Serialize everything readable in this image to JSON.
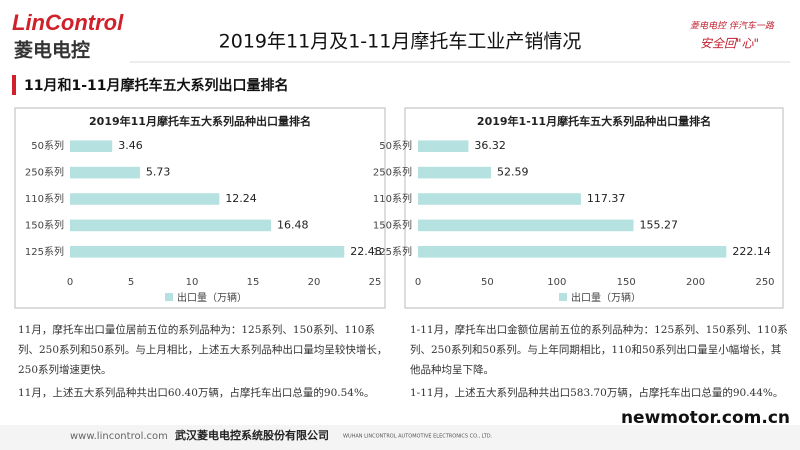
{
  "header": {
    "logo": "LinControl",
    "logo_cn": "菱电电控",
    "title": "2019年11月及1-11月摩托车工业产销情况",
    "slogan_1": "菱电电控 伴汽车一路",
    "slogan_2": "安全回\"心\""
  },
  "section_title": "11月和1-11月摩托车五大系列出口量排名",
  "chart_data": [
    {
      "type": "bar",
      "orientation": "horizontal",
      "title": "2019年11月摩托车五大系列品种出口量排名",
      "categories": [
        "50系列",
        "250系列",
        "110系列",
        "150系列",
        "125系列"
      ],
      "series": [
        {
          "name": "出口量（万辆）",
          "color": "#b5e2e0",
          "values": [
            3.46,
            5.73,
            12.24,
            16.48,
            22.48
          ]
        }
      ],
      "xlim": [
        0,
        25
      ],
      "xticks": [
        0,
        5,
        10,
        15,
        20,
        25
      ],
      "grid": false,
      "legend": "bottom"
    },
    {
      "type": "bar",
      "orientation": "horizontal",
      "title": "2019年1-11月摩托车五大系列品种出口量排名",
      "categories": [
        "50系列",
        "250系列",
        "110系列",
        "150系列",
        "125系列"
      ],
      "series": [
        {
          "name": "出口量（万辆）",
          "color": "#b5e2e0",
          "values": [
            36.32,
            52.59,
            117.37,
            155.27,
            222.14
          ]
        }
      ],
      "xlim": [
        0,
        250
      ],
      "xticks": [
        0,
        50,
        100,
        150,
        200,
        250
      ],
      "grid": false,
      "legend": "bottom"
    }
  ],
  "notes": [
    [
      "11月，摩托车出口量位居前五位的系列品种为：125系列、150系列、110系列、250系列和50系列。与上月相比，上述五大系列品种出口量均呈较快增长，250系列增速更快。",
      "11月，上述五大系列品种共出口60.40万辆，占摩托车出口总量的90.54%。"
    ],
    [
      "1-11月，摩托车出口金额位居前五位的系列品种为：125系列、150系列、110系列、250系列和50系列。与上年同期相比，110和50系列出口量呈小幅增长，其他品种均呈下降。",
      "1-11月，上述五大系列品种共出口583.70万辆，占摩托车出口总量的90.44%。"
    ]
  ],
  "footer": {
    "url": "www.lincontrol.com",
    "company": "武汉菱电电控系统股份有限公司",
    "company_en": "WUHAN LINCONTROL AUTOMOTIVE ELECTRONICS CO., LTD.",
    "watermark": "newmotor.com.cn"
  }
}
